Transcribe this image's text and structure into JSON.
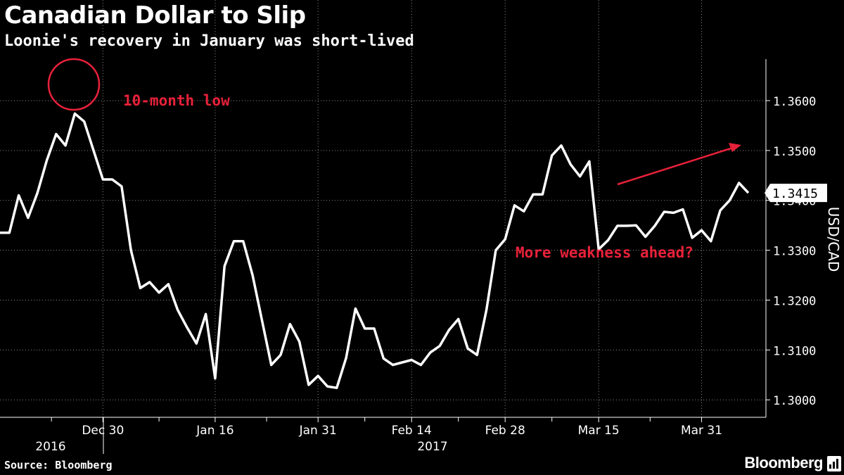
{
  "header": {
    "title": "Canadian Dollar to Slip",
    "subtitle": "Loonie's recovery in January was short-lived"
  },
  "footer": {
    "source": "Source: Bloomberg",
    "brand": "Bloomberg",
    "brand_icon": "bloomberg-bars-icon"
  },
  "colors": {
    "background": "#000000",
    "line": "#ffffff",
    "annotation": "#e8213a"
  },
  "chart_data": {
    "type": "line",
    "x_axis": "dates, 2016-12-23 through 2017-04-03",
    "y_axis_label": "USD/CAD",
    "ylim": [
      1.2965,
      1.3655
    ],
    "yticks": [
      "1.3000",
      "1.3100",
      "1.3200",
      "1.3300",
      "1.3400",
      "1.3500",
      "1.3600"
    ],
    "xticks": [
      "Dec 30",
      "Jan 16",
      "Jan 31",
      "Feb 14",
      "Feb 28",
      "Mar 15",
      "Mar 31"
    ],
    "year_labels": [
      "2016",
      "2017"
    ],
    "last_value_label": "1.3415",
    "annotations": [
      "10-month low",
      "More weakness ahead?"
    ],
    "series": [
      {
        "values": [
          1.3335,
          1.3335,
          1.341,
          1.3365,
          1.3415,
          1.348,
          1.3533,
          1.351,
          1.3574,
          1.3558,
          1.35,
          1.3442,
          1.3442,
          1.3428,
          1.33,
          1.3224,
          1.3236,
          1.3215,
          1.3232,
          1.318,
          1.3145,
          1.3113,
          1.3172,
          1.3043,
          1.3268,
          1.3318,
          1.3318,
          1.325,
          1.316,
          1.307,
          1.309,
          1.3152,
          1.3117,
          1.303,
          1.3048,
          1.3027,
          1.3024,
          1.3084,
          1.3183,
          1.3143,
          1.3143,
          1.3083,
          1.307,
          1.3075,
          1.308,
          1.307,
          1.3095,
          1.3108,
          1.314,
          1.3162,
          1.3103,
          1.309,
          1.318,
          1.33,
          1.3322,
          1.339,
          1.3378,
          1.3412,
          1.3412,
          1.349,
          1.351,
          1.3472,
          1.3448,
          1.3478,
          1.3302,
          1.332,
          1.3349,
          1.3349,
          1.335,
          1.3327,
          1.3349,
          1.3377,
          1.3375,
          1.3382,
          1.3325,
          1.334,
          1.3318,
          1.338,
          1.34,
          1.3435,
          1.3415
        ]
      }
    ]
  }
}
